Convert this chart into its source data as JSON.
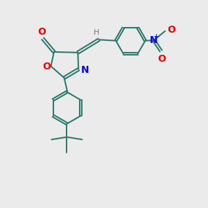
{
  "bg_color": "#ebebeb",
  "bond_color": "#2d7a6e",
  "bond_width": 1.5,
  "atom_colors": {
    "O": "#ff0000",
    "N": "#0000ff",
    "C": "#2d7a6e",
    "H": "#777777"
  },
  "font_size": 9,
  "fig_size": [
    3.0,
    3.0
  ],
  "dpi": 100
}
